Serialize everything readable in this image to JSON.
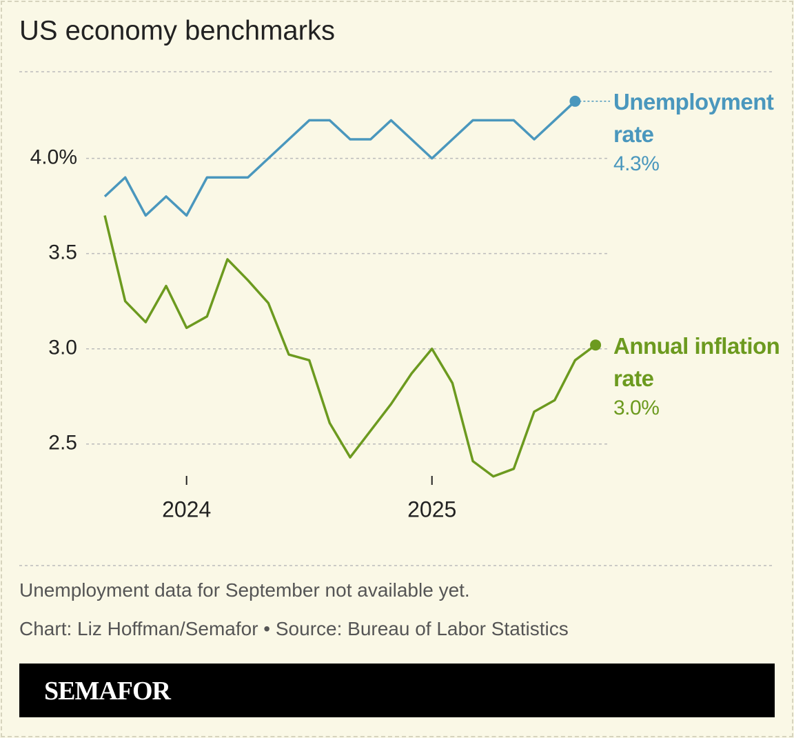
{
  "chart_data": {
    "type": "line",
    "title": "US economy benchmarks",
    "categories": [
      null,
      null,
      null,
      null,
      "2024",
      null,
      null,
      null,
      null,
      null,
      null,
      null,
      null,
      null,
      null,
      null,
      "2025",
      null,
      null,
      null,
      null,
      null,
      null,
      null,
      null
    ],
    "series": [
      {
        "name": "Unemployment rate",
        "color": "#4a97bd",
        "values": [
          3.8,
          3.9,
          3.7,
          3.8,
          3.7,
          3.9,
          3.9,
          3.9,
          4.0,
          4.1,
          4.2,
          4.2,
          4.1,
          4.1,
          4.2,
          4.1,
          4.0,
          4.1,
          4.2,
          4.2,
          4.2,
          4.1,
          4.2,
          4.3,
          null
        ],
        "value_labels": [
          null,
          null,
          null,
          null,
          null,
          null,
          null,
          null,
          null,
          null,
          null,
          null,
          null,
          null,
          null,
          null,
          null,
          null,
          null,
          null,
          null,
          null,
          null,
          "4.3%",
          null
        ]
      },
      {
        "name": "Annual inflation rate",
        "color": "#6c9a1f",
        "values": [
          3.7,
          3.25,
          3.14,
          3.33,
          3.11,
          3.17,
          3.47,
          3.36,
          3.24,
          2.97,
          2.94,
          2.61,
          2.43,
          2.57,
          2.71,
          2.87,
          3.0,
          2.82,
          2.41,
          2.33,
          2.37,
          2.67,
          2.73,
          2.94,
          3.02
        ],
        "value_labels": [
          null,
          null,
          null,
          null,
          null,
          null,
          null,
          null,
          null,
          null,
          null,
          null,
          null,
          null,
          null,
          null,
          null,
          null,
          null,
          null,
          null,
          null,
          null,
          null,
          "3.0%"
        ]
      }
    ],
    "ylim": [
      2.3,
      4.35
    ],
    "yticks": [
      2.5,
      {
        "value": 3,
        "label": "3.0"
      },
      3.5,
      {
        "value": 4,
        "label": "4.0%"
      }
    ],
    "grid": true,
    "note": "Unemployment data for September not available yet.",
    "credit": "Chart: Liz Hoffman/Semafor • Source: Bureau of Labor Statistics",
    "brand": "SEMAFOR"
  }
}
